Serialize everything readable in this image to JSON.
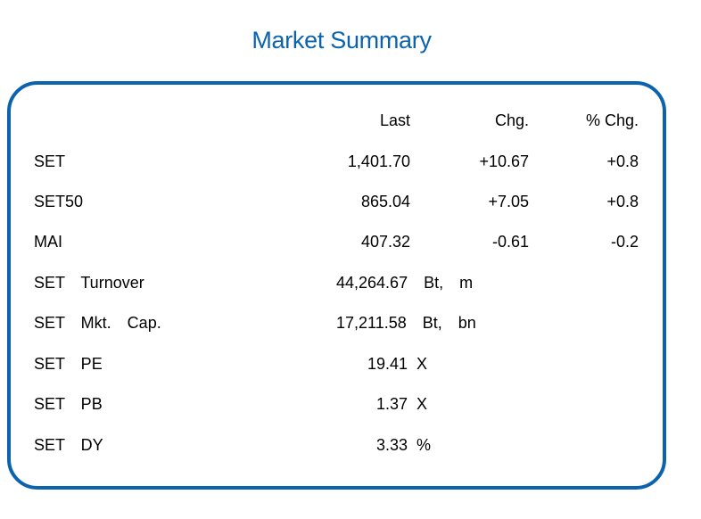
{
  "title": "Market Summary",
  "headers": {
    "last": "Last",
    "chg": "Chg.",
    "pct_chg": "% Chg."
  },
  "indices": [
    {
      "name": "SET",
      "last": "1,401.70",
      "chg": "+10.67",
      "pct_chg": "+0.8"
    },
    {
      "name": "SET50",
      "last": "865.04",
      "chg": "+7.05",
      "pct_chg": "+0.8"
    },
    {
      "name": "MAI",
      "last": "407.32",
      "chg": "-0.61",
      "pct_chg": "-0.2"
    }
  ],
  "stats": [
    {
      "name": "SET  Turnover",
      "value": "44,264.67  Bt,  m"
    },
    {
      "name": "SET  Mkt.  Cap.",
      "value": "17,211.58  Bt,  bn"
    },
    {
      "name": "SET  PE",
      "value": "19.41  X"
    },
    {
      "name": "SET  PB",
      "value": "1.37  X"
    },
    {
      "name": "SET  DY",
      "value": "3.33  %"
    }
  ],
  "colors": {
    "accent": "#0b63ad",
    "text": "#000000",
    "background": "#ffffff"
  }
}
